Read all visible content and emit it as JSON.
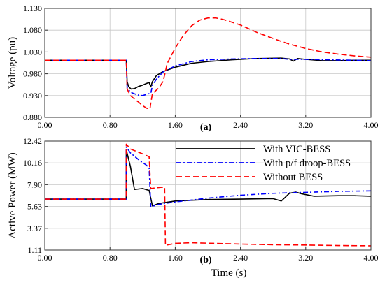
{
  "chart_data": [
    {
      "type": "line",
      "panel_label": "(a)",
      "ylabel": "Voltage (pu)",
      "xlabel": "",
      "xlim": [
        0,
        4
      ],
      "ylim": [
        0.88,
        1.13
      ],
      "xticks": [
        "0.00",
        "0.80",
        "1.60",
        "2.40",
        "3.20",
        "4.00"
      ],
      "yticks": [
        "0.880",
        "0.930",
        "0.980",
        "1.030",
        "1.080",
        "1.130"
      ],
      "xtick_values": [
        0,
        0.8,
        1.6,
        2.4,
        3.2,
        4.0
      ],
      "ytick_values": [
        0.88,
        0.93,
        0.98,
        1.03,
        1.08,
        1.13
      ],
      "grid": true,
      "series": [
        {
          "name": "With VIC-BESS",
          "color": "#000000",
          "dash": "solid",
          "points": [
            [
              0,
              1.011
            ],
            [
              0.999,
              1.011
            ],
            [
              1.0,
              1.011
            ],
            [
              1.01,
              0.962
            ],
            [
              1.03,
              0.95
            ],
            [
              1.06,
              0.945
            ],
            [
              1.1,
              0.946
            ],
            [
              1.15,
              0.951
            ],
            [
              1.2,
              0.954
            ],
            [
              1.25,
              0.958
            ],
            [
              1.28,
              0.96
            ],
            [
              1.3,
              0.95
            ],
            [
              1.32,
              0.962
            ],
            [
              1.37,
              0.976
            ],
            [
              1.45,
              0.985
            ],
            [
              1.6,
              0.995
            ],
            [
              1.8,
              1.004
            ],
            [
              2.0,
              1.008
            ],
            [
              2.3,
              1.012
            ],
            [
              2.6,
              1.015
            ],
            [
              2.9,
              1.016
            ],
            [
              3.0,
              1.014
            ],
            [
              3.05,
              1.009
            ],
            [
              3.1,
              1.015
            ],
            [
              3.2,
              1.013
            ],
            [
              3.4,
              1.01
            ],
            [
              3.6,
              1.01
            ],
            [
              3.8,
              1.011
            ],
            [
              4.0,
              1.011
            ]
          ]
        },
        {
          "name": "With p/f droop-BESS",
          "color": "#0000ff",
          "dash": "dashdot",
          "points": [
            [
              0,
              1.011
            ],
            [
              0.999,
              1.011
            ],
            [
              1.0,
              1.011
            ],
            [
              1.01,
              0.948
            ],
            [
              1.05,
              0.938
            ],
            [
              1.1,
              0.934
            ],
            [
              1.15,
              0.931
            ],
            [
              1.2,
              0.93
            ],
            [
              1.27,
              0.934
            ],
            [
              1.3,
              0.935
            ],
            [
              1.32,
              0.953
            ],
            [
              1.37,
              0.968
            ],
            [
              1.45,
              0.984
            ],
            [
              1.6,
              0.998
            ],
            [
              1.8,
              1.008
            ],
            [
              2.0,
              1.012
            ],
            [
              2.3,
              1.014
            ],
            [
              2.6,
              1.015
            ],
            [
              2.9,
              1.015
            ],
            [
              3.0,
              1.013
            ],
            [
              3.2,
              1.013
            ],
            [
              3.5,
              1.012
            ],
            [
              3.8,
              1.011
            ],
            [
              4.0,
              1.01
            ]
          ]
        },
        {
          "name": "Without BESS",
          "color": "#ff0000",
          "dash": "dashed",
          "points": [
            [
              0,
              1.011
            ],
            [
              0.999,
              1.011
            ],
            [
              1.0,
              1.011
            ],
            [
              1.01,
              0.945
            ],
            [
              1.05,
              0.93
            ],
            [
              1.1,
              0.922
            ],
            [
              1.15,
              0.915
            ],
            [
              1.2,
              0.907
            ],
            [
              1.25,
              0.901
            ],
            [
              1.29,
              0.899
            ],
            [
              1.3,
              0.912
            ],
            [
              1.32,
              0.934
            ],
            [
              1.4,
              0.948
            ],
            [
              1.45,
              0.962
            ],
            [
              1.48,
              0.985
            ],
            [
              1.5,
              1.003
            ],
            [
              1.6,
              1.039
            ],
            [
              1.7,
              1.068
            ],
            [
              1.8,
              1.09
            ],
            [
              1.9,
              1.103
            ],
            [
              2.0,
              1.108
            ],
            [
              2.1,
              1.108
            ],
            [
              2.2,
              1.104
            ],
            [
              2.4,
              1.092
            ],
            [
              2.6,
              1.075
            ],
            [
              2.8,
              1.061
            ],
            [
              3.0,
              1.048
            ],
            [
              3.2,
              1.038
            ],
            [
              3.4,
              1.03
            ],
            [
              3.6,
              1.025
            ],
            [
              3.8,
              1.021
            ],
            [
              4.0,
              1.018
            ]
          ]
        }
      ]
    },
    {
      "type": "line",
      "panel_label": "(b)",
      "ylabel": "Active Power (MW)",
      "xlabel": "Time (s)",
      "xlim": [
        0,
        4
      ],
      "ylim": [
        1.11,
        12.42
      ],
      "xticks": [
        "0.00",
        "0.80",
        "1.60",
        "2.40",
        "3.20",
        "4.00"
      ],
      "yticks": [
        "1.11",
        "3.37",
        "5.63",
        "7.90",
        "10.16",
        "12.42"
      ],
      "xtick_values": [
        0,
        0.8,
        1.6,
        2.4,
        3.2,
        4.0
      ],
      "ytick_values": [
        1.11,
        3.37,
        5.63,
        7.9,
        10.16,
        12.42
      ],
      "grid": true,
      "legend": "top-right",
      "series": [
        {
          "name": "With VIC-BESS",
          "color": "#000000",
          "dash": "solid",
          "points": [
            [
              0,
              6.4
            ],
            [
              0.999,
              6.4
            ],
            [
              1.0,
              11.5
            ],
            [
              1.05,
              9.8
            ],
            [
              1.1,
              7.4
            ],
            [
              1.2,
              7.5
            ],
            [
              1.28,
              7.3
            ],
            [
              1.32,
              5.7
            ],
            [
              1.4,
              5.95
            ],
            [
              1.6,
              6.2
            ],
            [
              2.0,
              6.35
            ],
            [
              2.4,
              6.4
            ],
            [
              2.8,
              6.45
            ],
            [
              2.9,
              6.2
            ],
            [
              2.95,
              6.6
            ],
            [
              3.0,
              7.0
            ],
            [
              3.08,
              7.12
            ],
            [
              3.15,
              6.95
            ],
            [
              3.3,
              6.7
            ],
            [
              3.6,
              6.75
            ],
            [
              3.8,
              6.75
            ],
            [
              4.0,
              6.7
            ]
          ]
        },
        {
          "name": "With p/f droop-BESS",
          "color": "#0000ff",
          "dash": "dashdot",
          "points": [
            [
              0,
              6.4
            ],
            [
              0.999,
              6.4
            ],
            [
              1.0,
              11.8
            ],
            [
              1.05,
              11.2
            ],
            [
              1.15,
              10.5
            ],
            [
              1.25,
              9.9
            ],
            [
              1.28,
              9.6
            ],
            [
              1.3,
              5.6
            ],
            [
              1.4,
              5.85
            ],
            [
              1.6,
              6.1
            ],
            [
              2.0,
              6.5
            ],
            [
              2.4,
              6.8
            ],
            [
              2.8,
              7.0
            ],
            [
              3.2,
              7.1
            ],
            [
              3.6,
              7.2
            ],
            [
              4.0,
              7.25
            ]
          ]
        },
        {
          "name": "Without BESS",
          "color": "#ff0000",
          "dash": "dashed",
          "points": [
            [
              0,
              6.4
            ],
            [
              0.999,
              6.4
            ],
            [
              1.0,
              12.1
            ],
            [
              1.05,
              11.6
            ],
            [
              1.2,
              11.1
            ],
            [
              1.28,
              10.8
            ],
            [
              1.3,
              7.5
            ],
            [
              1.4,
              7.6
            ],
            [
              1.47,
              7.65
            ],
            [
              1.48,
              1.6
            ],
            [
              1.6,
              1.8
            ],
            [
              1.8,
              1.87
            ],
            [
              2.0,
              1.82
            ],
            [
              2.4,
              1.73
            ],
            [
              2.8,
              1.66
            ],
            [
              3.2,
              1.63
            ],
            [
              3.6,
              1.58
            ],
            [
              4.0,
              1.55
            ]
          ]
        }
      ]
    }
  ]
}
